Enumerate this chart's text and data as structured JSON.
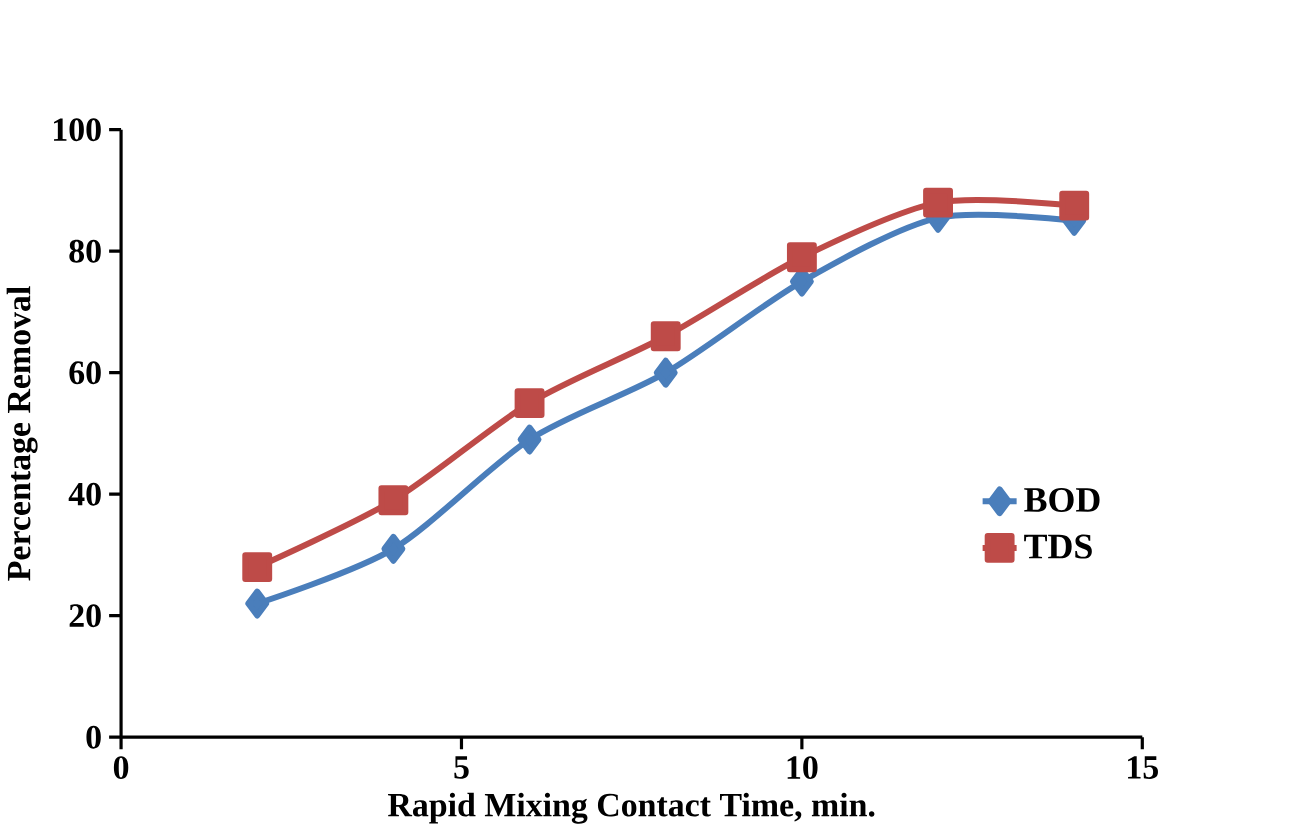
{
  "chart_data": {
    "type": "line",
    "xlabel": "Rapid Mixing Contact Time, min.",
    "ylabel": "Percentage Removal",
    "x": [
      2,
      4,
      6,
      8,
      10,
      12,
      14
    ],
    "series": [
      {
        "name": "BOD",
        "color": "#4a7ebb",
        "marker": "diamond",
        "values": [
          22,
          31,
          49,
          60,
          75,
          85.5,
          85
        ]
      },
      {
        "name": "TDS",
        "color": "#be4b48",
        "marker": "square",
        "values": [
          28,
          39,
          55,
          66,
          79,
          88,
          87.5
        ]
      }
    ],
    "xlim": [
      0,
      15
    ],
    "xticks": [
      0,
      5,
      10,
      15
    ],
    "ylim": [
      0,
      100
    ],
    "yticks": [
      0,
      20,
      40,
      60,
      80,
      100
    ],
    "legend": "right",
    "grid": false,
    "line_style": "solid"
  }
}
